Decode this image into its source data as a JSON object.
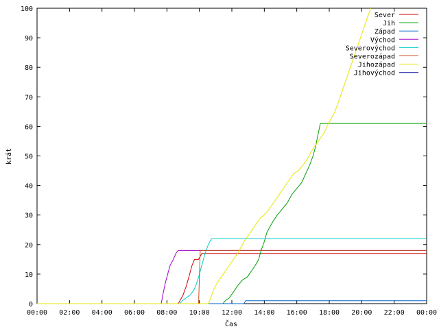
{
  "chart_data": {
    "type": "line",
    "xlabel": "Čas",
    "ylabel": "krát",
    "ylim": [
      0,
      100
    ],
    "xlim": [
      0,
      24
    ],
    "x_ticks": [
      {
        "value": 0,
        "label": "00:00"
      },
      {
        "value": 2,
        "label": "02:00"
      },
      {
        "value": 4,
        "label": "04:00"
      },
      {
        "value": 6,
        "label": "06:00"
      },
      {
        "value": 8,
        "label": "08:00"
      },
      {
        "value": 10,
        "label": "10:00"
      },
      {
        "value": 12,
        "label": "12:00"
      },
      {
        "value": 14,
        "label": "14:00"
      },
      {
        "value": 16,
        "label": "16:00"
      },
      {
        "value": 18,
        "label": "18:00"
      },
      {
        "value": 20,
        "label": "20:00"
      },
      {
        "value": 22,
        "label": "22:00"
      },
      {
        "value": 24,
        "label": "00:00"
      }
    ],
    "y_ticks": [
      {
        "value": 0,
        "label": "0"
      },
      {
        "value": 10,
        "label": "10"
      },
      {
        "value": 20,
        "label": "20"
      },
      {
        "value": 30,
        "label": "30"
      },
      {
        "value": 40,
        "label": "40"
      },
      {
        "value": 50,
        "label": "50"
      },
      {
        "value": 60,
        "label": "60"
      },
      {
        "value": 70,
        "label": "70"
      },
      {
        "value": 80,
        "label": "80"
      },
      {
        "value": 90,
        "label": "90"
      },
      {
        "value": 100,
        "label": "100"
      }
    ],
    "grid": false,
    "legend_position": "top-right",
    "series": [
      {
        "name": "Sever",
        "color": "#cc0000",
        "points": [
          [
            0,
            0
          ],
          [
            8.7,
            0
          ],
          [
            8.8,
            1
          ],
          [
            9.0,
            3
          ],
          [
            9.2,
            6
          ],
          [
            9.4,
            10
          ],
          [
            9.55,
            13
          ],
          [
            9.7,
            15
          ],
          [
            9.95,
            15
          ],
          [
            10.05,
            16
          ],
          [
            10.15,
            17
          ],
          [
            24,
            17
          ]
        ]
      },
      {
        "name": "Jih",
        "color": "#00a000",
        "points": [
          [
            0,
            0
          ],
          [
            11.45,
            0
          ],
          [
            11.6,
            1
          ],
          [
            11.85,
            2
          ],
          [
            12.1,
            4
          ],
          [
            12.35,
            6
          ],
          [
            12.65,
            8
          ],
          [
            12.95,
            9
          ],
          [
            13.2,
            11
          ],
          [
            13.45,
            13
          ],
          [
            13.65,
            15
          ],
          [
            13.8,
            18
          ],
          [
            14.0,
            21
          ],
          [
            14.15,
            24
          ],
          [
            14.35,
            26
          ],
          [
            14.55,
            28
          ],
          [
            14.8,
            30
          ],
          [
            15.1,
            32
          ],
          [
            15.4,
            34
          ],
          [
            15.7,
            37
          ],
          [
            16.0,
            39
          ],
          [
            16.3,
            41
          ],
          [
            16.55,
            44
          ],
          [
            16.8,
            47
          ],
          [
            17.0,
            50
          ],
          [
            17.15,
            53
          ],
          [
            17.3,
            57
          ],
          [
            17.45,
            61
          ],
          [
            24,
            61
          ]
        ]
      },
      {
        "name": "Západ",
        "color": "#0066cc",
        "points": [
          [
            0,
            0
          ],
          [
            12.75,
            0
          ],
          [
            12.85,
            1
          ],
          [
            24,
            1
          ]
        ]
      },
      {
        "name": "Východ",
        "color": "#a000c8",
        "points": [
          [
            0,
            0
          ],
          [
            7.65,
            0
          ],
          [
            7.75,
            3
          ],
          [
            7.9,
            7
          ],
          [
            8.05,
            10
          ],
          [
            8.2,
            13
          ],
          [
            8.4,
            15
          ],
          [
            8.55,
            17
          ],
          [
            8.7,
            18
          ],
          [
            24,
            18
          ]
        ]
      },
      {
        "name": "Severovýchod",
        "color": "#00cccc",
        "points": [
          [
            0,
            0
          ],
          [
            8.8,
            0
          ],
          [
            8.95,
            1
          ],
          [
            9.2,
            2
          ],
          [
            9.45,
            3
          ],
          [
            9.7,
            5
          ],
          [
            9.9,
            8
          ],
          [
            10.05,
            11
          ],
          [
            10.2,
            14
          ],
          [
            10.35,
            17
          ],
          [
            10.55,
            20
          ],
          [
            10.75,
            22
          ],
          [
            24,
            22
          ]
        ]
      },
      {
        "name": "Severozápad",
        "color": "#c05020",
        "points": [
          [
            0,
            0
          ],
          [
            9.95,
            0
          ],
          [
            10.05,
            18
          ],
          [
            24,
            18
          ]
        ]
      },
      {
        "name": "Jihozápad",
        "color": "#e6e600",
        "points": [
          [
            0,
            0
          ],
          [
            10.55,
            0
          ],
          [
            10.7,
            2
          ],
          [
            10.9,
            5
          ],
          [
            11.1,
            7
          ],
          [
            11.35,
            9
          ],
          [
            11.6,
            11
          ],
          [
            11.85,
            13
          ],
          [
            12.1,
            15
          ],
          [
            12.35,
            17
          ],
          [
            12.55,
            19
          ],
          [
            12.75,
            21
          ],
          [
            13.0,
            23
          ],
          [
            13.25,
            25
          ],
          [
            13.5,
            27
          ],
          [
            13.75,
            29
          ],
          [
            14.0,
            30
          ],
          [
            14.3,
            32
          ],
          [
            14.55,
            34
          ],
          [
            14.8,
            36
          ],
          [
            15.05,
            38
          ],
          [
            15.3,
            40
          ],
          [
            15.55,
            42
          ],
          [
            15.8,
            44
          ],
          [
            16.1,
            45
          ],
          [
            16.4,
            47
          ],
          [
            16.65,
            49
          ],
          [
            16.95,
            52
          ],
          [
            17.2,
            54
          ],
          [
            17.45,
            56
          ],
          [
            17.7,
            58
          ],
          [
            17.95,
            61
          ],
          [
            18.15,
            63
          ],
          [
            18.35,
            65
          ],
          [
            18.55,
            68
          ],
          [
            18.8,
            72
          ],
          [
            19.05,
            76
          ],
          [
            19.3,
            80
          ],
          [
            19.55,
            84
          ],
          [
            19.8,
            88
          ],
          [
            20.05,
            92
          ],
          [
            20.3,
            96
          ],
          [
            20.55,
            100
          ]
        ]
      },
      {
        "name": "Jihovýchod",
        "color": "#000099",
        "points": []
      }
    ]
  }
}
